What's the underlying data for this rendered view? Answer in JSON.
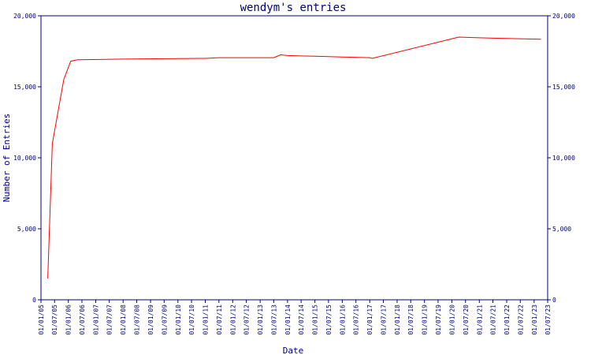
{
  "chart_data": {
    "type": "line",
    "title": "wendym's entries",
    "xlabel": "Date",
    "ylabel": "Number of Entries",
    "ylim": [
      0,
      20000
    ],
    "y_ticks": [
      "0",
      "5,000",
      "10,000",
      "15,000",
      "20,000"
    ],
    "y_tick_values": [
      0,
      5000,
      10000,
      15000,
      20000
    ],
    "x_ticks": [
      "01/01/05",
      "01/07/05",
      "01/01/06",
      "01/07/06",
      "01/01/07",
      "01/07/07",
      "01/01/08",
      "01/07/08",
      "01/01/09",
      "01/07/09",
      "01/01/10",
      "01/07/10",
      "01/01/11",
      "01/07/11",
      "01/01/12",
      "01/07/12",
      "01/01/13",
      "01/07/13",
      "01/01/14",
      "01/07/14",
      "01/01/15",
      "01/07/15",
      "01/01/16",
      "01/07/16",
      "01/01/17",
      "01/07/17",
      "01/01/18",
      "01/07/18",
      "01/01/19",
      "01/07/19",
      "01/01/20",
      "01/07/20",
      "01/01/21",
      "01/07/21",
      "01/01/22",
      "01/07/22",
      "01/01/23",
      "01/07/23"
    ],
    "grid": false,
    "colors": {
      "line": "#ff0000",
      "axis": "#000080",
      "text": "#000080"
    },
    "series": [
      {
        "x": [
          "2005-04-01",
          "2005-06-01",
          "2005-11-01",
          "2006-02-01",
          "2006-05-01",
          "2008-01-01",
          "2011-01-01",
          "2011-07-01",
          "2013-07-01",
          "2013-10-01",
          "2014-01-01",
          "2015-01-01",
          "2016-01-01",
          "2017-01-01",
          "2017-02-01",
          "2020-04-01",
          "2021-01-01",
          "2022-01-01",
          "2023-04-01"
        ],
        "y": [
          1500,
          11000,
          15500,
          16800,
          16900,
          16950,
          17000,
          17050,
          17050,
          17250,
          17200,
          17150,
          17100,
          17050,
          17000,
          18500,
          18450,
          18400,
          18350
        ]
      }
    ]
  }
}
